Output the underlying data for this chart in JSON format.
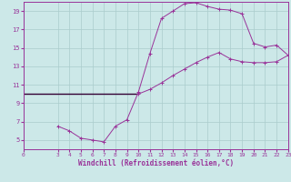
{
  "xlabel": "Windchill (Refroidissement éolien,°C)",
  "background_color": "#cce8e8",
  "line_color": "#993399",
  "grid_color": "#aacccc",
  "x_temp": [
    0,
    3,
    4,
    5,
    6,
    7,
    8,
    9,
    10
  ],
  "y_temp": [
    10.0,
    10.0,
    10.0,
    10.0,
    10.0,
    10.0,
    10.0,
    10.0,
    10.0
  ],
  "x_temp2": [
    10,
    11,
    12,
    13,
    14,
    15,
    16,
    17,
    18,
    19,
    20,
    21,
    22,
    23
  ],
  "y_temp2": [
    10.0,
    10.5,
    11.2,
    12.0,
    12.7,
    13.4,
    14.0,
    14.5,
    13.8,
    13.5,
    13.4,
    13.4,
    13.5,
    14.2
  ],
  "x_windchill": [
    3,
    4,
    5,
    6,
    7,
    8,
    9,
    10,
    11,
    12,
    13,
    14,
    15,
    16,
    17,
    18,
    19,
    20,
    21,
    22,
    23
  ],
  "y_windchill": [
    6.5,
    6.0,
    5.2,
    5.0,
    4.8,
    6.5,
    7.2,
    10.2,
    14.4,
    18.2,
    19.0,
    19.8,
    19.9,
    19.5,
    19.2,
    19.1,
    18.7,
    15.5,
    15.1,
    15.3,
    14.2
  ],
  "xlim": [
    0,
    23
  ],
  "ylim": [
    4,
    20
  ],
  "xticks": [
    0,
    3,
    4,
    5,
    6,
    7,
    8,
    9,
    10,
    11,
    12,
    13,
    14,
    15,
    16,
    17,
    18,
    19,
    20,
    21,
    22,
    23
  ],
  "yticks": [
    5,
    7,
    9,
    11,
    13,
    15,
    17,
    19
  ],
  "figsize": [
    3.2,
    2.0
  ],
  "dpi": 100
}
